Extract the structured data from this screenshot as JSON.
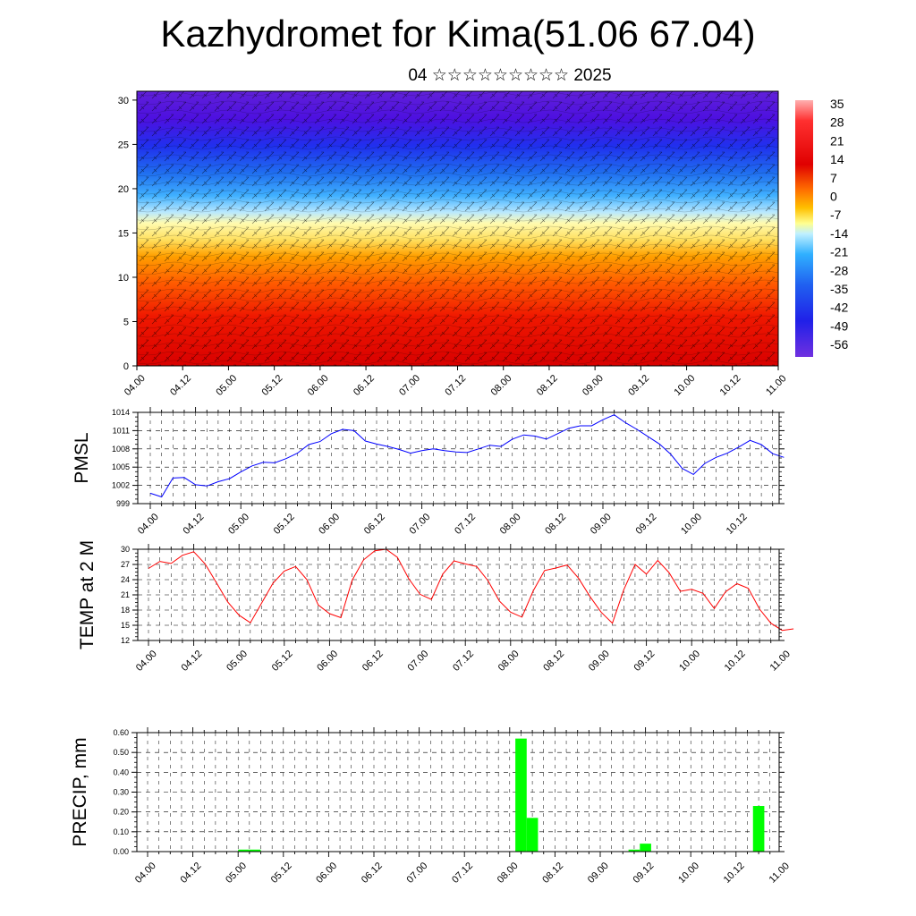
{
  "header": {
    "title": "Kazhydromet for Kima(51.06 67.04)",
    "subtitle": "04 ☆☆☆☆☆☆☆☆☆ 2025"
  },
  "chart_data": [
    {
      "type": "heatmap",
      "name": "cross-section",
      "x_ticks": [
        "04.00",
        "04.12",
        "05.00",
        "05.12",
        "06.00",
        "06.12",
        "07.00",
        "07.12",
        "08.00",
        "08.12",
        "09.00",
        "09.12",
        "10.00",
        "10.12",
        "11.00"
      ],
      "y_ticks": [
        0,
        5,
        10,
        15,
        20,
        25,
        30
      ],
      "ylim": [
        0,
        31
      ],
      "colorbar_labels": [
        "35",
        "28",
        "21",
        "14",
        "7",
        "0",
        "-7",
        "-14",
        "-21",
        "-28",
        "-35",
        "-42",
        "-49",
        "-56"
      ],
      "colors": {
        "warm_low": "#d40000",
        "mid": "#ffff80",
        "cold_top": "#5500dd"
      }
    },
    {
      "type": "line",
      "ylabel": "PMSL",
      "x_ticks": [
        "04.00",
        "04.12",
        "05.00",
        "05.12",
        "06.00",
        "06.12",
        "07.00",
        "07.12",
        "08.00",
        "08.12",
        "09.00",
        "09.12",
        "10.00",
        "10.12",
        "11.00"
      ],
      "y_ticks": [
        "999",
        "1002",
        "1005",
        "1008",
        "1011",
        "1014"
      ],
      "ylim": [
        999,
        1014
      ],
      "color": "#0000ff",
      "values": [
        1000.7,
        1000.1,
        1003.2,
        1003.3,
        1002.1,
        1001.9,
        1002.6,
        1003.1,
        1004.2,
        1005.2,
        1005.8,
        1005.7,
        1006.4,
        1007.3,
        1008.7,
        1009.2,
        1010.5,
        1011.2,
        1011.0,
        1009.3,
        1008.8,
        1008.4,
        1007.9,
        1007.3,
        1007.7,
        1008.0,
        1007.7,
        1007.5,
        1007.4,
        1008.0,
        1008.6,
        1008.4,
        1009.6,
        1010.3,
        1010.1,
        1009.6,
        1010.5,
        1011.4,
        1011.8,
        1011.8,
        1012.8,
        1013.6,
        1012.3,
        1011.2,
        1010.0,
        1008.8,
        1007.1,
        1004.8,
        1003.8,
        1005.6,
        1006.6,
        1007.3,
        1008.3,
        1009.4,
        1008.7,
        1007.2,
        1006.6
      ]
    },
    {
      "type": "line",
      "ylabel": "TEMP at 2 M",
      "x_ticks": [
        "04.00",
        "04.12",
        "05.00",
        "05.12",
        "06.00",
        "06.12",
        "07.00",
        "07.12",
        "08.00",
        "08.12",
        "09.00",
        "09.12",
        "10.00",
        "10.12",
        "11.00"
      ],
      "y_ticks": [
        "12",
        "15",
        "18",
        "21",
        "24",
        "27",
        "30"
      ],
      "ylim": [
        12,
        30
      ],
      "color": "#ff0000",
      "values": [
        26.2,
        27.6,
        27.2,
        28.8,
        29.5,
        27.1,
        23.4,
        19.6,
        17.0,
        15.5,
        19.4,
        23.3,
        25.7,
        26.6,
        24.0,
        19.0,
        17.3,
        16.5,
        23.9,
        27.9,
        29.7,
        30.0,
        28.4,
        24.2,
        21.1,
        20.1,
        25.1,
        27.7,
        27.1,
        26.6,
        23.8,
        19.8,
        17.6,
        16.6,
        21.8,
        25.8,
        26.3,
        26.9,
        24.3,
        20.7,
        17.6,
        15.4,
        22.0,
        27.0,
        25.1,
        27.8,
        25.4,
        21.7,
        22.1,
        21.3,
        18.3,
        21.6,
        23.2,
        22.3,
        18.2,
        15.4,
        14.0,
        14.3
      ]
    },
    {
      "type": "bar",
      "ylabel": "PRECIP, mm",
      "x_ticks": [
        "04.00",
        "04.12",
        "05.00",
        "05.12",
        "06.00",
        "06.12",
        "07.00",
        "07.12",
        "08.00",
        "08.12",
        "09.00",
        "09.12",
        "10.00",
        "10.12",
        "11.00"
      ],
      "y_ticks": [
        "0.00",
        "0.10",
        "0.20",
        "0.30",
        "0.40",
        "0.50",
        "0.60"
      ],
      "ylim": [
        0,
        0.6
      ],
      "color": "#00ff00",
      "bars": [
        {
          "x": 8.5,
          "value": 0.01
        },
        {
          "x": 9.5,
          "value": 0.01
        },
        {
          "x": 33.0,
          "value": 0.57
        },
        {
          "x": 34.0,
          "value": 0.17
        },
        {
          "x": 43.0,
          "value": 0.01
        },
        {
          "x": 44.0,
          "value": 0.04
        },
        {
          "x": 54.0,
          "value": 0.23
        }
      ]
    }
  ]
}
